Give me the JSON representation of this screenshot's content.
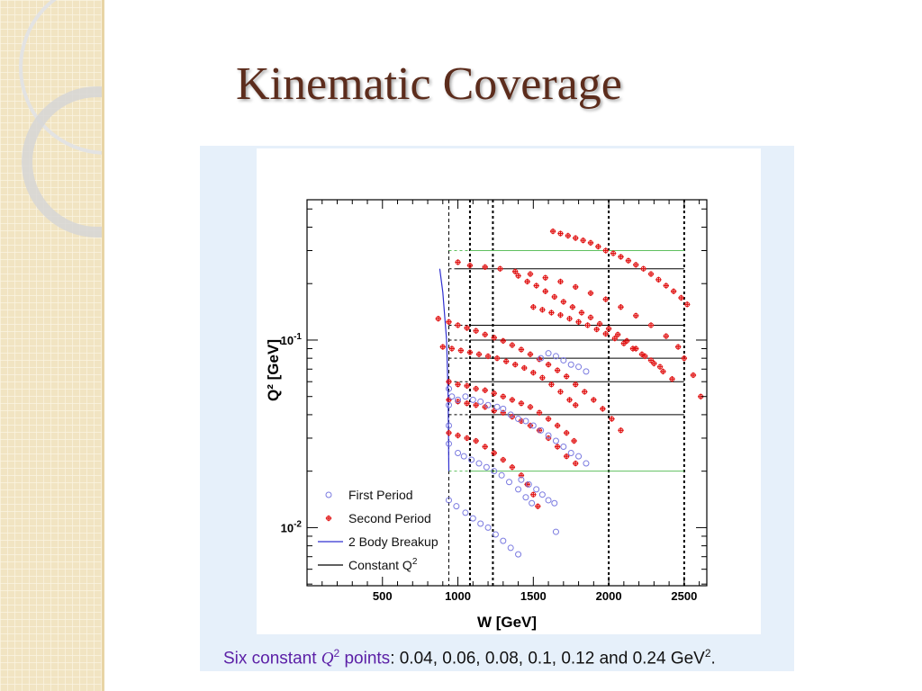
{
  "slide": {
    "title": "Kinematic Coverage",
    "caption": {
      "part1": "Six constant ",
      "q_symbol": "Q",
      "q_exp": "2",
      "part2": " points",
      "part3": ": 0.04, 0.06, 0.08, 0.1, 0.12 and 0.24 GeV",
      "unit_exp": "2",
      "end": "."
    }
  },
  "colors": {
    "title": "#5c2c1c",
    "first_period": "#7a7ae0",
    "second_period": "#e01010",
    "two_body": "#3030d0",
    "constant_q2": "#000000",
    "green_bound": "#60c060",
    "caption_highlight": "#5b1fa6"
  },
  "chart_data": {
    "type": "scatter",
    "xlabel": "W [GeV]",
    "ylabel": "Q² [GeV]",
    "xlim": [
      0,
      2650
    ],
    "ylim": [
      0.0049,
      0.56
    ],
    "yscale": "log",
    "xticks": [
      500,
      1000,
      1500,
      2000,
      2500
    ],
    "yticks": [
      {
        "value": 0.1,
        "base": "10",
        "exp": "-1"
      },
      {
        "value": 0.01,
        "base": "10",
        "exp": "-2"
      }
    ],
    "legend_position": "bottom-left",
    "legend": [
      {
        "label": "First Period",
        "kind": "open-circle",
        "color": "#7a7ae0"
      },
      {
        "label": "Second Period",
        "kind": "cross",
        "color": "#e01010"
      },
      {
        "label": "2 Body Breakup",
        "kind": "line",
        "color": "#3030d0"
      },
      {
        "label": "Constant Q",
        "label_exp": "2",
        "kind": "line",
        "color": "#000000"
      }
    ],
    "vertical_lines": [
      940,
      1080,
      1232,
      2000,
      2500
    ],
    "constant_q2_lines": [
      {
        "y": 0.24,
        "x": [
          980,
          2500
        ],
        "color": "#000000"
      },
      {
        "y": 0.12,
        "x": [
          1080,
          2500
        ],
        "color": "#000000"
      },
      {
        "y": 0.1,
        "x": [
          1080,
          2500
        ],
        "color": "#000000"
      },
      {
        "y": 0.08,
        "x": [
          1080,
          2500
        ],
        "color": "#000000"
      },
      {
        "y": 0.06,
        "x": [
          1080,
          2500
        ],
        "color": "#000000"
      },
      {
        "y": 0.04,
        "x": [
          1080,
          2500
        ],
        "color": "#000000"
      },
      {
        "y": 0.3,
        "x": [
          1080,
          2500
        ],
        "color": "#60c060"
      },
      {
        "y": 0.02,
        "x": [
          1080,
          2500
        ],
        "color": "#60c060"
      }
    ],
    "two_body_breakup": {
      "x": [
        940,
        935,
        925,
        900,
        880
      ],
      "y": [
        0.02,
        0.05,
        0.1,
        0.18,
        0.24
      ]
    },
    "series": [
      {
        "name": "Second Period",
        "points": [
          [
            1630,
            0.38
          ],
          [
            1680,
            0.37
          ],
          [
            1730,
            0.36
          ],
          [
            1780,
            0.35
          ],
          [
            1830,
            0.34
          ],
          [
            1880,
            0.33
          ],
          [
            1930,
            0.315
          ],
          [
            1980,
            0.3
          ],
          [
            2030,
            0.29
          ],
          [
            2080,
            0.278
          ],
          [
            2130,
            0.265
          ],
          [
            2180,
            0.252
          ],
          [
            2230,
            0.24
          ],
          [
            2280,
            0.225
          ],
          [
            2330,
            0.21
          ],
          [
            2380,
            0.195
          ],
          [
            2430,
            0.182
          ],
          [
            2480,
            0.168
          ],
          [
            2520,
            0.155
          ],
          [
            1000,
            0.26
          ],
          [
            1080,
            0.25
          ],
          [
            1180,
            0.245
          ],
          [
            1280,
            0.24
          ],
          [
            1380,
            0.232
          ],
          [
            1480,
            0.225
          ],
          [
            1580,
            0.215
          ],
          [
            1680,
            0.205
          ],
          [
            1780,
            0.192
          ],
          [
            1880,
            0.178
          ],
          [
            1980,
            0.165
          ],
          [
            2080,
            0.15
          ],
          [
            2180,
            0.135
          ],
          [
            2280,
            0.12
          ],
          [
            2380,
            0.105
          ],
          [
            2460,
            0.092
          ],
          [
            2500,
            0.08
          ],
          [
            2560,
            0.065
          ],
          [
            2610,
            0.05
          ],
          [
            1400,
            0.22
          ],
          [
            1460,
            0.205
          ],
          [
            1520,
            0.195
          ],
          [
            1580,
            0.182
          ],
          [
            1640,
            0.17
          ],
          [
            1700,
            0.16
          ],
          [
            1760,
            0.15
          ],
          [
            1820,
            0.14
          ],
          [
            1880,
            0.132
          ],
          [
            1940,
            0.122
          ],
          [
            2000,
            0.115
          ],
          [
            2060,
            0.107
          ],
          [
            2120,
            0.099
          ],
          [
            2180,
            0.09
          ],
          [
            2240,
            0.082
          ],
          [
            2300,
            0.075
          ],
          [
            2360,
            0.068
          ],
          [
            2420,
            0.062
          ],
          [
            1500,
            0.15
          ],
          [
            1560,
            0.145
          ],
          [
            1620,
            0.14
          ],
          [
            1680,
            0.136
          ],
          [
            1740,
            0.13
          ],
          [
            1800,
            0.125
          ],
          [
            1860,
            0.12
          ],
          [
            1920,
            0.114
          ],
          [
            1980,
            0.108
          ],
          [
            2040,
            0.102
          ],
          [
            2100,
            0.096
          ],
          [
            2160,
            0.09
          ],
          [
            2220,
            0.084
          ],
          [
            2280,
            0.078
          ],
          [
            2340,
            0.072
          ],
          [
            870,
            0.13
          ],
          [
            940,
            0.125
          ],
          [
            1000,
            0.12
          ],
          [
            1060,
            0.116
          ],
          [
            1120,
            0.112
          ],
          [
            1180,
            0.107
          ],
          [
            1240,
            0.103
          ],
          [
            1300,
            0.099
          ],
          [
            1360,
            0.094
          ],
          [
            1420,
            0.089
          ],
          [
            1480,
            0.084
          ],
          [
            1540,
            0.079
          ],
          [
            1600,
            0.074
          ],
          [
            1660,
            0.069
          ],
          [
            1720,
            0.064
          ],
          [
            1780,
            0.058
          ],
          [
            1840,
            0.053
          ],
          [
            1900,
            0.048
          ],
          [
            1960,
            0.043
          ],
          [
            2020,
            0.038
          ],
          [
            2080,
            0.033
          ],
          [
            900,
            0.092
          ],
          [
            960,
            0.09
          ],
          [
            1020,
            0.088
          ],
          [
            1080,
            0.086
          ],
          [
            1140,
            0.084
          ],
          [
            1200,
            0.082
          ],
          [
            1260,
            0.08
          ],
          [
            1320,
            0.077
          ],
          [
            1380,
            0.074
          ],
          [
            1440,
            0.071
          ],
          [
            1500,
            0.067
          ],
          [
            1560,
            0.063
          ],
          [
            1620,
            0.058
          ],
          [
            1680,
            0.053
          ],
          [
            1740,
            0.048
          ],
          [
            1780,
            0.045
          ],
          [
            940,
            0.06
          ],
          [
            1000,
            0.058
          ],
          [
            1060,
            0.057
          ],
          [
            1120,
            0.055
          ],
          [
            1180,
            0.054
          ],
          [
            1240,
            0.052
          ],
          [
            1300,
            0.05
          ],
          [
            1360,
            0.048
          ],
          [
            1420,
            0.046
          ],
          [
            1480,
            0.044
          ],
          [
            1540,
            0.041
          ],
          [
            1600,
            0.038
          ],
          [
            1660,
            0.035
          ],
          [
            1720,
            0.032
          ],
          [
            1770,
            0.029
          ],
          [
            940,
            0.048
          ],
          [
            1000,
            0.047
          ],
          [
            1060,
            0.046
          ],
          [
            1120,
            0.045
          ],
          [
            1180,
            0.044
          ],
          [
            1240,
            0.042
          ],
          [
            1300,
            0.041
          ],
          [
            1360,
            0.039
          ],
          [
            1420,
            0.037
          ],
          [
            1480,
            0.035
          ],
          [
            1540,
            0.033
          ],
          [
            1600,
            0.03
          ],
          [
            1660,
            0.027
          ],
          [
            1720,
            0.024
          ],
          [
            1780,
            0.022
          ],
          [
            940,
            0.032
          ],
          [
            1000,
            0.031
          ],
          [
            1060,
            0.03
          ],
          [
            1120,
            0.029
          ],
          [
            1180,
            0.027
          ],
          [
            1240,
            0.025
          ],
          [
            1300,
            0.023
          ],
          [
            1360,
            0.021
          ],
          [
            1420,
            0.019
          ],
          [
            1460,
            0.017
          ],
          [
            1500,
            0.015
          ],
          [
            1530,
            0.013
          ]
        ]
      },
      {
        "name": "First Period",
        "points": [
          [
            940,
            0.055
          ],
          [
            940,
            0.045
          ],
          [
            940,
            0.035
          ],
          [
            940,
            0.028
          ],
          [
            940,
            0.014
          ],
          [
            990,
            0.013
          ],
          [
            1050,
            0.012
          ],
          [
            1100,
            0.0112
          ],
          [
            1150,
            0.0105
          ],
          [
            1200,
            0.01
          ],
          [
            1250,
            0.0092
          ],
          [
            1300,
            0.0085
          ],
          [
            1350,
            0.0078
          ],
          [
            1400,
            0.0072
          ],
          [
            1000,
            0.025
          ],
          [
            1040,
            0.024
          ],
          [
            1090,
            0.023
          ],
          [
            1140,
            0.022
          ],
          [
            1190,
            0.021
          ],
          [
            1240,
            0.02
          ],
          [
            1290,
            0.019
          ],
          [
            1340,
            0.0175
          ],
          [
            1400,
            0.016
          ],
          [
            1450,
            0.0145
          ],
          [
            1490,
            0.0135
          ],
          [
            960,
            0.05
          ],
          [
            1000,
            0.048
          ],
          [
            1050,
            0.05
          ],
          [
            1100,
            0.048
          ],
          [
            1150,
            0.047
          ],
          [
            1200,
            0.045
          ],
          [
            1260,
            0.044
          ],
          [
            1300,
            0.043
          ],
          [
            1350,
            0.04
          ],
          [
            1400,
            0.038
          ],
          [
            1450,
            0.037
          ],
          [
            1500,
            0.035
          ],
          [
            1550,
            0.033
          ],
          [
            1600,
            0.031
          ],
          [
            1650,
            0.029
          ],
          [
            1700,
            0.027
          ],
          [
            1750,
            0.025
          ],
          [
            1800,
            0.024
          ],
          [
            1850,
            0.022
          ],
          [
            1550,
            0.08
          ],
          [
            1600,
            0.085
          ],
          [
            1650,
            0.082
          ],
          [
            1700,
            0.078
          ],
          [
            1750,
            0.074
          ],
          [
            1800,
            0.072
          ],
          [
            1850,
            0.068
          ],
          [
            1420,
            0.018
          ],
          [
            1470,
            0.017
          ],
          [
            1520,
            0.016
          ],
          [
            1560,
            0.015
          ],
          [
            1600,
            0.014
          ],
          [
            1640,
            0.0135
          ],
          [
            1650,
            0.0095
          ]
        ]
      }
    ]
  }
}
